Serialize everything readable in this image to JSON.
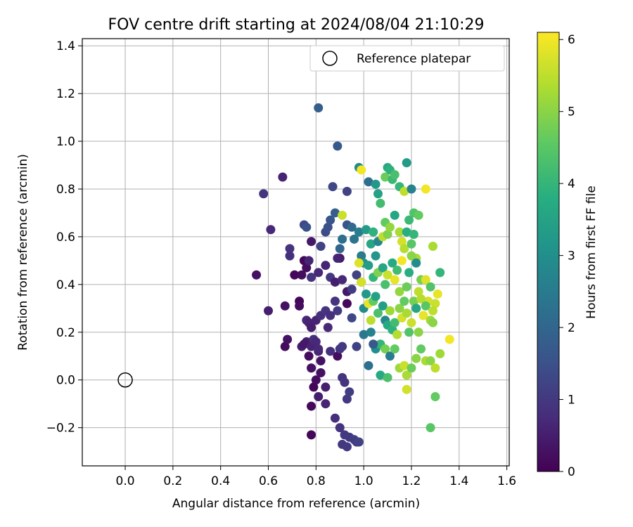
{
  "chart_data": {
    "type": "scatter",
    "title": "FOV centre drift starting at 2024/08/04 21:10:29",
    "xlabel": "Angular distance from reference (arcmin)",
    "ylabel": "Rotation from reference (arcmin)",
    "xlim": [
      -0.18,
      1.61
    ],
    "ylim": [
      -0.36,
      1.43
    ],
    "xticks": [
      0.0,
      0.2,
      0.4,
      0.6,
      0.8,
      1.0,
      1.2,
      1.4,
      1.6
    ],
    "yticks": [
      -0.2,
      0.0,
      0.2,
      0.4,
      0.6,
      0.8,
      1.0,
      1.2,
      1.4
    ],
    "grid": true,
    "legend": {
      "placement": "top-right",
      "entries": [
        "Reference platepar"
      ]
    },
    "reference_point": {
      "x": 0.0,
      "y": 0.0
    },
    "colorbar": {
      "label": "Hours from first FF file",
      "range": [
        0,
        6.1
      ],
      "ticks": [
        0,
        1,
        2,
        3,
        4,
        5,
        6
      ],
      "colormap": "viridis"
    },
    "points": [
      [
        0.78,
        -0.23,
        0.1
      ],
      [
        0.78,
        -0.11,
        0.15
      ],
      [
        0.79,
        -0.03,
        0.1
      ],
      [
        0.8,
        0.0,
        0.2
      ],
      [
        0.81,
        -0.07,
        0.5
      ],
      [
        0.82,
        0.03,
        0.3
      ],
      [
        0.84,
        -0.03,
        0.5
      ],
      [
        0.84,
        -0.1,
        0.6
      ],
      [
        0.88,
        -0.16,
        0.8
      ],
      [
        0.9,
        -0.2,
        0.9
      ],
      [
        0.92,
        -0.23,
        1.0
      ],
      [
        0.94,
        -0.24,
        1.0
      ],
      [
        0.96,
        -0.25,
        1.1
      ],
      [
        0.97,
        -0.26,
        1.1
      ],
      [
        0.98,
        -0.26,
        1.2
      ],
      [
        0.91,
        -0.27,
        1.0
      ],
      [
        0.93,
        -0.28,
        1.0
      ],
      [
        0.93,
        -0.08,
        1.0
      ],
      [
        0.94,
        -0.05,
        1.1
      ],
      [
        0.91,
        0.01,
        0.9
      ],
      [
        0.92,
        -0.01,
        0.9
      ],
      [
        0.89,
        0.1,
        0.2
      ],
      [
        0.86,
        0.12,
        0.8
      ],
      [
        0.82,
        0.08,
        0.3
      ],
      [
        0.81,
        0.12,
        0.6
      ],
      [
        0.78,
        0.05,
        0.3
      ],
      [
        0.77,
        0.1,
        0.2
      ],
      [
        0.76,
        0.16,
        0.5
      ],
      [
        0.74,
        0.14,
        0.5
      ],
      [
        0.75,
        0.15,
        0.4
      ],
      [
        0.78,
        0.14,
        0.6
      ],
      [
        0.79,
        0.17,
        0.8
      ],
      [
        0.8,
        0.16,
        0.7
      ],
      [
        0.81,
        0.13,
        0.7
      ],
      [
        0.67,
        0.14,
        0.2
      ],
      [
        0.68,
        0.17,
        0.3
      ],
      [
        0.76,
        0.25,
        0.7
      ],
      [
        0.77,
        0.24,
        0.6
      ],
      [
        0.78,
        0.22,
        0.5
      ],
      [
        0.8,
        0.25,
        0.6
      ],
      [
        0.82,
        0.27,
        0.8
      ],
      [
        0.84,
        0.29,
        0.9
      ],
      [
        0.85,
        0.22,
        0.7
      ],
      [
        0.86,
        0.27,
        0.8
      ],
      [
        0.88,
        0.33,
        0.9
      ],
      [
        0.89,
        0.29,
        1.0
      ],
      [
        0.9,
        0.13,
        0.9
      ],
      [
        0.91,
        0.14,
        1.0
      ],
      [
        0.95,
        0.26,
        1.3
      ],
      [
        0.97,
        0.14,
        1.2
      ],
      [
        0.73,
        0.33,
        0.1
      ],
      [
        0.73,
        0.31,
        0.2
      ],
      [
        0.67,
        0.31,
        0.3
      ],
      [
        0.6,
        0.29,
        0.5
      ],
      [
        0.71,
        0.44,
        0.1
      ],
      [
        0.74,
        0.44,
        0.2
      ],
      [
        0.75,
        0.5,
        0.1
      ],
      [
        0.76,
        0.47,
        0.2
      ],
      [
        0.78,
        0.43,
        0.9
      ],
      [
        0.81,
        0.45,
        0.7
      ],
      [
        0.84,
        0.48,
        0.6
      ],
      [
        0.86,
        0.43,
        1.0
      ],
      [
        0.88,
        0.41,
        0.5
      ],
      [
        0.9,
        0.51,
        0.4
      ],
      [
        0.91,
        0.42,
        0.7
      ],
      [
        0.93,
        0.37,
        0.4
      ],
      [
        0.93,
        0.32,
        0.1
      ],
      [
        0.95,
        0.38,
        1.1
      ],
      [
        0.97,
        0.44,
        1.2
      ],
      [
        0.99,
        0.41,
        1.4
      ],
      [
        0.55,
        0.44,
        0.3
      ],
      [
        0.69,
        0.52,
        0.8
      ],
      [
        0.69,
        0.55,
        0.9
      ],
      [
        0.77,
        0.5,
        0.6
      ],
      [
        0.78,
        0.58,
        0.4
      ],
      [
        0.82,
        0.56,
        1.2
      ],
      [
        0.84,
        0.62,
        1.4
      ],
      [
        0.85,
        0.64,
        1.5
      ],
      [
        0.86,
        0.67,
        1.6
      ],
      [
        0.88,
        0.7,
        1.8
      ],
      [
        0.89,
        0.51,
        0.6
      ],
      [
        0.9,
        0.55,
        2.0
      ],
      [
        0.91,
        0.59,
        2.2
      ],
      [
        0.93,
        0.65,
        1.6
      ],
      [
        0.95,
        0.64,
        2.1
      ],
      [
        0.96,
        0.59,
        2.3
      ],
      [
        0.98,
        0.62,
        2.6
      ],
      [
        0.99,
        0.52,
        2.5
      ],
      [
        0.61,
        0.63,
        0.7
      ],
      [
        0.75,
        0.65,
        1.3
      ],
      [
        0.76,
        0.64,
        1.5
      ],
      [
        0.87,
        0.81,
        1.3
      ],
      [
        0.93,
        0.79,
        1.2
      ],
      [
        0.66,
        0.85,
        0.6
      ],
      [
        0.58,
        0.78,
        0.9
      ],
      [
        0.89,
        0.98,
        1.7
      ],
      [
        0.81,
        1.14,
        1.8
      ],
      [
        0.98,
        0.89,
        2.9
      ],
      [
        1.02,
        0.83,
        2.2
      ],
      [
        1.05,
        0.82,
        3.2
      ],
      [
        1.06,
        0.78,
        3.5
      ],
      [
        1.07,
        0.74,
        4.2
      ],
      [
        1.09,
        0.85,
        4.7
      ],
      [
        1.1,
        0.89,
        3.7
      ],
      [
        1.11,
        0.88,
        3.9
      ],
      [
        1.12,
        0.84,
        4.1
      ],
      [
        1.13,
        0.86,
        4.3
      ],
      [
        1.15,
        0.81,
        4.0
      ],
      [
        1.17,
        0.79,
        5.5
      ],
      [
        1.18,
        0.91,
        3.3
      ],
      [
        1.2,
        0.8,
        2.7
      ],
      [
        1.21,
        0.7,
        4.4
      ],
      [
        1.23,
        0.69,
        4.6
      ],
      [
        1.26,
        0.8,
        6.0
      ],
      [
        0.99,
        0.88,
        6.0
      ],
      [
        0.91,
        0.69,
        5.6
      ],
      [
        1.01,
        0.63,
        3.3
      ],
      [
        1.03,
        0.57,
        3.6
      ],
      [
        1.04,
        0.62,
        3.9
      ],
      [
        1.06,
        0.58,
        2.8
      ],
      [
        1.08,
        0.6,
        5.5
      ],
      [
        1.09,
        0.66,
        4.6
      ],
      [
        1.1,
        0.61,
        4.9
      ],
      [
        1.11,
        0.64,
        5.1
      ],
      [
        1.13,
        0.69,
        3.6
      ],
      [
        1.15,
        0.62,
        5.3
      ],
      [
        1.16,
        0.58,
        5.7
      ],
      [
        1.17,
        0.55,
        5.4
      ],
      [
        1.18,
        0.62,
        3.8
      ],
      [
        1.19,
        0.67,
        4.1
      ],
      [
        1.2,
        0.57,
        4.5
      ],
      [
        1.21,
        0.61,
        4.0
      ],
      [
        1.22,
        0.51,
        5.3
      ],
      [
        1.0,
        0.49,
        3.1
      ],
      [
        1.02,
        0.48,
        3.4
      ],
      [
        1.04,
        0.43,
        4.0
      ],
      [
        1.05,
        0.52,
        3.2
      ],
      [
        1.06,
        0.45,
        4.9
      ],
      [
        1.08,
        0.47,
        3.6
      ],
      [
        1.09,
        0.4,
        4.3
      ],
      [
        1.1,
        0.44,
        5.6
      ],
      [
        1.12,
        0.49,
        3.7
      ],
      [
        1.13,
        0.42,
        5.9
      ],
      [
        1.14,
        0.46,
        4.2
      ],
      [
        1.15,
        0.37,
        5.1
      ],
      [
        1.16,
        0.5,
        6.0
      ],
      [
        1.18,
        0.39,
        4.7
      ],
      [
        1.19,
        0.45,
        3.8
      ],
      [
        1.2,
        0.52,
        5.0
      ],
      [
        1.22,
        0.49,
        2.9
      ],
      [
        1.23,
        0.37,
        5.5
      ],
      [
        1.24,
        0.42,
        4.8
      ],
      [
        1.26,
        0.42,
        5.8
      ],
      [
        1.27,
        0.33,
        5.7
      ],
      [
        1.28,
        0.39,
        4.4
      ],
      [
        1.3,
        0.32,
        5.6
      ],
      [
        1.31,
        0.36,
        5.9
      ],
      [
        1.32,
        0.45,
        4.0
      ],
      [
        1.29,
        0.56,
        5.3
      ],
      [
        1.0,
        0.3,
        2.9
      ],
      [
        1.01,
        0.36,
        3.2
      ],
      [
        1.02,
        0.32,
        5.9
      ],
      [
        1.03,
        0.25,
        5.5
      ],
      [
        1.04,
        0.33,
        4.6
      ],
      [
        1.05,
        0.35,
        3.5
      ],
      [
        1.06,
        0.28,
        4.3
      ],
      [
        1.08,
        0.31,
        3.4
      ],
      [
        1.09,
        0.25,
        2.8
      ],
      [
        1.1,
        0.23,
        3.7
      ],
      [
        1.11,
        0.29,
        5.2
      ],
      [
        1.12,
        0.21,
        3.9
      ],
      [
        1.13,
        0.24,
        4.2
      ],
      [
        1.14,
        0.19,
        5.4
      ],
      [
        1.15,
        0.3,
        5.0
      ],
      [
        1.16,
        0.26,
        5.7
      ],
      [
        1.17,
        0.33,
        4.6
      ],
      [
        1.18,
        0.28,
        5.3
      ],
      [
        1.19,
        0.2,
        4.4
      ],
      [
        1.2,
        0.24,
        5.6
      ],
      [
        1.21,
        0.33,
        4.8
      ],
      [
        1.22,
        0.3,
        3.6
      ],
      [
        1.23,
        0.2,
        5.0
      ],
      [
        1.24,
        0.34,
        5.4
      ],
      [
        1.25,
        0.27,
        5.9
      ],
      [
        1.26,
        0.31,
        4.5
      ],
      [
        1.28,
        0.25,
        5.2
      ],
      [
        1.29,
        0.29,
        5.5
      ],
      [
        1.29,
        0.24,
        5.0
      ],
      [
        1.0,
        0.19,
        2.4
      ],
      [
        1.03,
        0.2,
        2.7
      ],
      [
        1.05,
        0.13,
        3.0
      ],
      [
        1.07,
        0.15,
        4.0
      ],
      [
        1.09,
        0.13,
        4.8
      ],
      [
        1.11,
        0.1,
        2.5
      ],
      [
        1.13,
        0.13,
        4.6
      ],
      [
        1.15,
        0.05,
        5.2
      ],
      [
        1.17,
        0.06,
        5.6
      ],
      [
        1.18,
        0.02,
        5.3
      ],
      [
        1.2,
        0.05,
        4.7
      ],
      [
        1.22,
        0.09,
        5.0
      ],
      [
        1.24,
        0.13,
        4.6
      ],
      [
        1.26,
        0.08,
        5.3
      ],
      [
        1.28,
        0.08,
        5.0
      ],
      [
        1.3,
        0.05,
        5.5
      ],
      [
        1.32,
        0.11,
        5.2
      ],
      [
        1.36,
        0.17,
        6.0
      ],
      [
        1.18,
        -0.04,
        5.7
      ],
      [
        1.3,
        -0.07,
        4.6
      ],
      [
        1.28,
        -0.2,
        4.5
      ],
      [
        1.02,
        0.06,
        2.2
      ],
      [
        1.07,
        0.02,
        3.7
      ],
      [
        1.1,
        0.01,
        4.3
      ],
      [
        1.04,
        0.15,
        1.7
      ],
      [
        0.99,
        0.41,
        5.7
      ],
      [
        0.98,
        0.49,
        5.8
      ]
    ]
  }
}
